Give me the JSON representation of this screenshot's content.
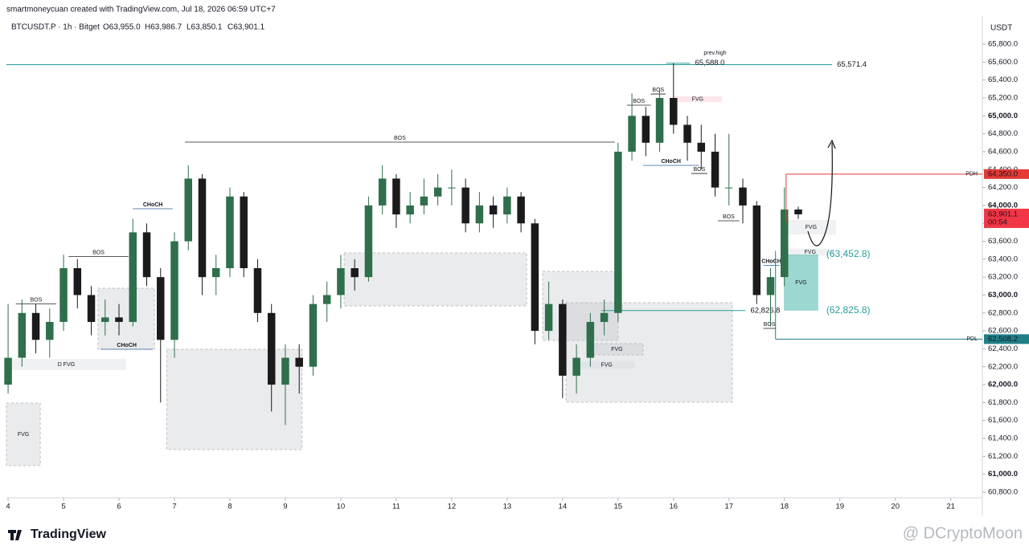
{
  "header": {
    "credit": "smartmoneycuan created with TradingView.com, Jul 18, 2026 06:59 UTC+7",
    "symbol": "BTCUSDT.P · 1h · Bitget",
    "ohlc": [
      "O63,955.0",
      "H63,986.7",
      "L63,850.1",
      "C63,901.1"
    ]
  },
  "footer": {
    "brand": "TradingView",
    "watermark": "@ DCryptoMoon"
  },
  "chart_data": {
    "type": "candlestick",
    "currency": "USDT",
    "xlim": [
      3.97,
      21.57
    ],
    "ylim": [
      60737,
      66114
    ],
    "xticks": [
      4,
      5,
      6,
      7,
      8,
      9,
      10,
      11,
      12,
      13,
      14,
      15,
      16,
      17,
      18,
      19,
      20,
      21
    ],
    "yticks": [
      {
        "value": 60800,
        "label": "60,800.0"
      },
      {
        "value": 61000,
        "label": "61,000.0"
      },
      {
        "value": 61200,
        "label": "61,200.0"
      },
      {
        "value": 61400,
        "label": "61,400.0"
      },
      {
        "value": 61600,
        "label": "61,600.0"
      },
      {
        "value": 61800,
        "label": "61,800.0"
      },
      {
        "value": 62000,
        "label": "62,000.0"
      },
      {
        "value": 62200,
        "label": "62,200.0"
      },
      {
        "value": 62400,
        "label": "62,400.0"
      },
      {
        "value": 62600,
        "label": "62,600.0"
      },
      {
        "value": 62800,
        "label": "62,800.0"
      },
      {
        "value": 63000,
        "label": "63,000.0"
      },
      {
        "value": 63200,
        "label": "63,200.0"
      },
      {
        "value": 63400,
        "label": "63,400.0"
      },
      {
        "value": 63600,
        "label": "63,600.0"
      },
      {
        "value": 63800,
        "label": "63,800.0"
      },
      {
        "value": 64000,
        "label": "64,000.0"
      },
      {
        "value": 64200,
        "label": "64,200.0"
      },
      {
        "value": 64400,
        "label": "64,400.0"
      },
      {
        "value": 64600,
        "label": "64,600.0"
      },
      {
        "value": 64800,
        "label": "64,800.0"
      },
      {
        "value": 65000,
        "label": "65,000.0"
      },
      {
        "value": 65200,
        "label": "65,200.0"
      },
      {
        "value": 65400,
        "label": "65,400.0"
      },
      {
        "value": 65600,
        "label": "65,600.0"
      },
      {
        "value": 65800,
        "label": "65,800.0"
      }
    ],
    "up_color": "#2f6f4c",
    "down_color": "#1b1b1b",
    "x": [
      4,
      4.25,
      4.5,
      4.75,
      5,
      5.25,
      5.5,
      5.75,
      6,
      6.25,
      6.5,
      6.75,
      7,
      7.25,
      7.5,
      7.75,
      8,
      8.25,
      8.5,
      8.75,
      9,
      9.25,
      9.5,
      9.75,
      10,
      10.25,
      10.5,
      10.75,
      11,
      11.25,
      11.5,
      11.75,
      12,
      12.25,
      12.5,
      12.75,
      13,
      13.25,
      13.5,
      13.75,
      14,
      14.25,
      14.5,
      14.75,
      15,
      15.25,
      15.5,
      15.75,
      16,
      16.25,
      16.5,
      16.75,
      17,
      17.25,
      17.5,
      17.75,
      18,
      18.25
    ],
    "ohlc": [
      [
        62000,
        62900,
        61900,
        62300
      ],
      [
        62300,
        62950,
        62200,
        62800
      ],
      [
        62800,
        62900,
        62350,
        62500
      ],
      [
        62500,
        62850,
        62300,
        62700
      ],
      [
        62700,
        63450,
        62600,
        63300
      ],
      [
        63300,
        63400,
        62850,
        63000
      ],
      [
        63000,
        63100,
        62550,
        62700
      ],
      [
        62700,
        62950,
        62550,
        62750
      ],
      [
        62750,
        62900,
        62550,
        62700
      ],
      [
        62700,
        63850,
        62650,
        63700
      ],
      [
        63700,
        63800,
        63100,
        63200
      ],
      [
        63200,
        63300,
        61800,
        62500
      ],
      [
        62500,
        63700,
        62300,
        63600
      ],
      [
        63600,
        64450,
        63500,
        64300
      ],
      [
        64300,
        64350,
        63000,
        63200
      ],
      [
        63200,
        63450,
        63000,
        63300
      ],
      [
        63300,
        64200,
        63200,
        64100
      ],
      [
        64100,
        64150,
        63200,
        63300
      ],
      [
        63300,
        63400,
        62700,
        62800
      ],
      [
        62800,
        62900,
        61700,
        62000
      ],
      [
        62000,
        62450,
        61550,
        62300
      ],
      [
        62300,
        62450,
        61900,
        62200
      ],
      [
        62200,
        63000,
        62100,
        62900
      ],
      [
        62900,
        63150,
        62700,
        63000
      ],
      [
        63000,
        63450,
        62850,
        63300
      ],
      [
        63300,
        63400,
        63050,
        63200
      ],
      [
        63200,
        64100,
        63150,
        64000
      ],
      [
        64000,
        64450,
        63900,
        64300
      ],
      [
        64300,
        64350,
        63750,
        63900
      ],
      [
        63900,
        64150,
        63800,
        64000
      ],
      [
        64000,
        64300,
        63900,
        64100
      ],
      [
        64100,
        64350,
        64000,
        64200
      ],
      [
        64200,
        64400,
        64000,
        64200
      ],
      [
        64200,
        64300,
        63700,
        63800
      ],
      [
        63800,
        64150,
        63700,
        64000
      ],
      [
        64000,
        64100,
        63750,
        63900
      ],
      [
        63900,
        64200,
        63800,
        64100
      ],
      [
        64100,
        64150,
        63700,
        63800
      ],
      [
        63800,
        63850,
        62450,
        62600
      ],
      [
        62600,
        63150,
        62500,
        62900
      ],
      [
        62900,
        62950,
        61850,
        62100
      ],
      [
        62100,
        62450,
        61900,
        62300
      ],
      [
        62300,
        62800,
        62200,
        62700
      ],
      [
        62700,
        62950,
        62550,
        62800
      ],
      [
        62800,
        64700,
        62700,
        64600
      ],
      [
        64600,
        65250,
        64500,
        65000
      ],
      [
        65000,
        65100,
        64550,
        64700
      ],
      [
        64700,
        65300,
        64600,
        65200
      ],
      [
        65200,
        65588,
        64800,
        64900
      ],
      [
        64900,
        65000,
        64500,
        64700
      ],
      [
        64700,
        64900,
        64400,
        64600
      ],
      [
        64600,
        64800,
        64100,
        64200
      ],
      [
        64200,
        64800,
        64000,
        64200
      ],
      [
        64200,
        64300,
        63800,
        64000
      ],
      [
        64000,
        64050,
        62900,
        63000
      ],
      [
        63000,
        63300,
        62650,
        63200
      ],
      [
        63200,
        64200,
        63100,
        63955
      ],
      [
        63955,
        63986.7,
        63850.1,
        63901.1
      ]
    ],
    "zones": [
      {
        "x0": 3.97,
        "x1": 4.58,
        "y0": 61096,
        "y1": 61795,
        "color": "gray",
        "label": "FVG"
      },
      {
        "x0": 3.97,
        "x1": 6.13,
        "y0": 62162,
        "y1": 62288,
        "color": "light",
        "label": "D FVG"
      },
      {
        "x0": 5.62,
        "x1": 6.64,
        "y0": 62395,
        "y1": 63076,
        "color": "gray"
      },
      {
        "x0": 6.86,
        "x1": 9.3,
        "y0": 61275,
        "y1": 62395,
        "color": "gray"
      },
      {
        "x0": 10.06,
        "x1": 13.35,
        "y0": 62879,
        "y1": 63470,
        "color": "gray"
      },
      {
        "x0": 13.64,
        "x1": 15.0,
        "y0": 62494,
        "y1": 63264,
        "color": "gray"
      },
      {
        "x0": 14.06,
        "x1": 17.06,
        "y0": 61804,
        "y1": 62915,
        "color": "gray"
      },
      {
        "x0": 14.51,
        "x1": 15.45,
        "y0": 62332,
        "y1": 62458,
        "color": "gray",
        "label": "FVG"
      },
      {
        "x0": 14.29,
        "x1": 15.3,
        "y0": 62180,
        "y1": 62260,
        "color": "light",
        "label": "FVG"
      },
      {
        "x0": 16.0,
        "x1": 16.87,
        "y0": 65155,
        "y1": 65218,
        "color": "pink",
        "label": "FVG"
      },
      {
        "x0": 18.03,
        "x1": 18.93,
        "y0": 63676,
        "y1": 63838,
        "color": "light",
        "label": "FVG"
      },
      {
        "x0": 18.03,
        "x1": 18.9,
        "y0": 63440,
        "y1": 63520,
        "color": "light",
        "label": "FVG"
      },
      {
        "x0": 17.99,
        "x1": 18.61,
        "y0": 62825.8,
        "y1": 63452.8,
        "color": "teal",
        "label": "FVG",
        "bottom_label": "(62,825.8)",
        "top_label": "(63,452.8)"
      }
    ],
    "structures": [
      {
        "label": "BOS",
        "price": 62900,
        "x0": 4.14,
        "x1": 4.87,
        "color": "#222"
      },
      {
        "label": "BOS",
        "price": 63430,
        "x0": 5.09,
        "x1": 6.17,
        "color": "#222"
      },
      {
        "label": "CHoCH",
        "price": 62395,
        "x0": 5.67,
        "x1": 6.61,
        "color": "#2f5f9e"
      },
      {
        "label": "CHoCH",
        "price": 63963,
        "x0": 6.25,
        "x1": 6.97,
        "color": "#2f5f9e"
      },
      {
        "label": "BOS",
        "price": 64707,
        "x0": 7.19,
        "x1": 14.94,
        "color": "#222"
      },
      {
        "label": "BOS",
        "price": 65119,
        "x0": 15.16,
        "x1": 15.59,
        "color": "#222"
      },
      {
        "label": "BOS",
        "price": 65244,
        "x0": 15.59,
        "x1": 15.86,
        "color": "#222"
      },
      {
        "label": "CHoCH",
        "price": 64447,
        "x0": 15.45,
        "x1": 16.46,
        "color": "#2f5f9e"
      },
      {
        "label": "BOS",
        "price": 64357,
        "x0": 16.32,
        "x1": 16.61,
        "color": "#222"
      },
      {
        "label": "BOS",
        "price": 63829,
        "x0": 16.8,
        "x1": 17.19,
        "color": "#222"
      },
      {
        "label": "CHoCH",
        "price": 63330,
        "x0": 17.62,
        "x1": 17.91,
        "color": "#2f5f9e"
      },
      {
        "label": "BOS",
        "price": 62628,
        "x0": 17.62,
        "x1": 17.84,
        "color": "#222"
      }
    ],
    "levels": [
      {
        "value": 65571.4,
        "label": "65,571.4",
        "x0": 3.97,
        "x1": 18.86,
        "color": "#2a9d9a"
      },
      {
        "value": 65588,
        "label": "65,588.0",
        "x0": 15.87,
        "x1": 16.3,
        "color": "#2a9d9a"
      },
      {
        "value": 62826.8,
        "label": "62,826.8",
        "x0": 14.7,
        "x1": 17.3,
        "color": "#2a9d9a"
      }
    ],
    "annotations": [
      {
        "text": "prev.high",
        "x": 16.75,
        "y": 65700,
        "color": "#e05a5a"
      }
    ],
    "key_levels": [
      {
        "name": "PDH",
        "value": 64350,
        "value_label": "64,350.0",
        "from": 18.03,
        "color": "#e53935"
      },
      {
        "name": "PDL",
        "value": 62508.2,
        "value_label": "62,508.2",
        "from": 17.84,
        "color": "#1f7f86"
      }
    ],
    "last_price": {
      "value": 63901.1,
      "label": "63,901.1",
      "countdown": "00:54",
      "color": "#f23645"
    }
  }
}
